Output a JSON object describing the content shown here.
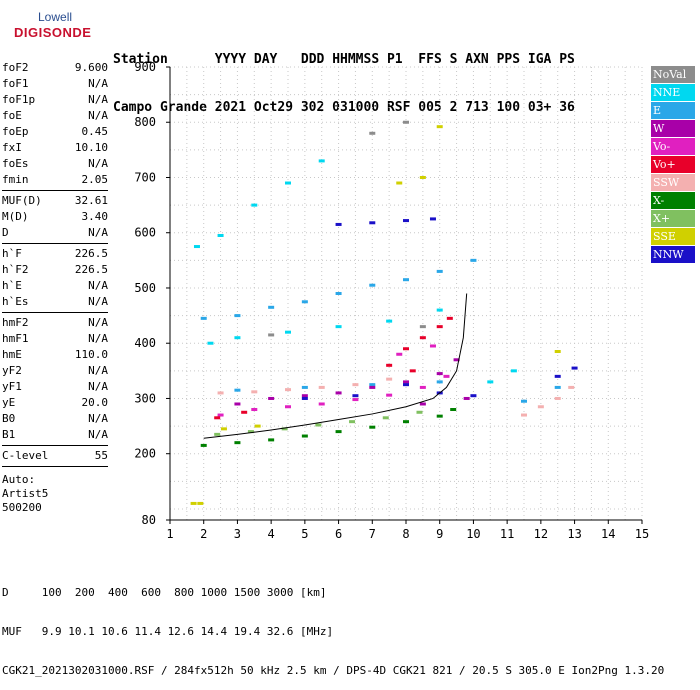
{
  "logo": {
    "brand": "Lowell",
    "name": "DIGISONDE"
  },
  "header": {
    "labels": [
      "Station",
      "YYYY",
      "DAY",
      "DDD",
      "HHMMSS",
      "P1",
      "FFS",
      "S",
      "AXN",
      "PPS",
      "IGA",
      "PS"
    ],
    "values": [
      "Campo Grande",
      "2021",
      "Oct29",
      "302",
      "031000",
      "RSF",
      "005",
      "2",
      "713",
      "100",
      "03+",
      "36"
    ]
  },
  "params": {
    "group1": [
      {
        "k": "foF2",
        "v": "9.600"
      },
      {
        "k": "foF1",
        "v": "N/A"
      },
      {
        "k": "foF1p",
        "v": "N/A"
      },
      {
        "k": "foE",
        "v": "N/A"
      },
      {
        "k": "foEp",
        "v": "0.45"
      },
      {
        "k": "fxI",
        "v": "10.10"
      },
      {
        "k": "foEs",
        "v": "N/A"
      },
      {
        "k": "fmin",
        "v": "2.05"
      }
    ],
    "group2": [
      {
        "k": "MUF(D)",
        "v": "32.61"
      },
      {
        "k": "M(D)",
        "v": "3.40"
      },
      {
        "k": "D",
        "v": "N/A"
      }
    ],
    "group3": [
      {
        "k": "h`F",
        "v": "226.5"
      },
      {
        "k": "h`F2",
        "v": "226.5"
      },
      {
        "k": "h`E",
        "v": "N/A"
      },
      {
        "k": "h`Es",
        "v": "N/A"
      }
    ],
    "group4": [
      {
        "k": "hmF2",
        "v": "N/A"
      },
      {
        "k": "hmF1",
        "v": "N/A"
      },
      {
        "k": "hmE",
        "v": "110.0"
      },
      {
        "k": "yF2",
        "v": "N/A"
      },
      {
        "k": "yF1",
        "v": "N/A"
      },
      {
        "k": "yE",
        "v": "20.0"
      },
      {
        "k": "B0",
        "v": "N/A"
      },
      {
        "k": "B1",
        "v": "N/A"
      }
    ],
    "group5": [
      {
        "k": "C-level",
        "v": "55"
      }
    ],
    "auto": [
      "Auto:",
      "Artist5",
      "500200"
    ]
  },
  "legend": [
    {
      "label": "NoVal",
      "color": "#8c8c8c"
    },
    {
      "label": "NNE",
      "color": "#00d8f0"
    },
    {
      "label": "E",
      "color": "#2aa7e8"
    },
    {
      "label": "W",
      "color": "#a800a8"
    },
    {
      "label": "Vo-",
      "color": "#e020c0"
    },
    {
      "label": "Vo+",
      "color": "#e8002a"
    },
    {
      "label": "SSW",
      "color": "#f4b0b0"
    },
    {
      "label": "X-",
      "color": "#008000"
    },
    {
      "label": "X+",
      "color": "#80c060"
    },
    {
      "label": "SSE",
      "color": "#d0d000"
    },
    {
      "label": "NNW",
      "color": "#1a10c8"
    }
  ],
  "footer": {
    "line1": "D     100  200  400  600  800 1000 1500 3000 [km]",
    "line2": "MUF   9.9 10.1 10.6 11.4 12.6 14.4 19.4 32.6 [MHz]",
    "line3": "CGK21_2021302031000.RSF / 284fx512h 50 kHz 2.5 km / DPS-4D CGK21 821 / 20.5 S 305.0 E Ion2Png 1.3.20"
  },
  "chart_data": {
    "type": "scatter",
    "title": "",
    "xlabel": "",
    "ylabel": "",
    "xlim": [
      1,
      15
    ],
    "ylim": [
      80,
      900
    ],
    "xticks": [
      1,
      2,
      3,
      4,
      5,
      6,
      7,
      8,
      9,
      10,
      11,
      12,
      13,
      14,
      15
    ],
    "yticks": [
      80,
      200,
      300,
      400,
      500,
      600,
      700,
      800,
      900
    ],
    "grid": true,
    "series": [
      {
        "name": "NNE",
        "color": "#00d8f0",
        "points": [
          [
            1.8,
            575
          ],
          [
            2.5,
            595
          ],
          [
            3.5,
            650
          ],
          [
            4.5,
            690
          ],
          [
            5.5,
            730
          ],
          [
            2.2,
            400
          ],
          [
            3.0,
            410
          ],
          [
            4.5,
            420
          ],
          [
            6.0,
            430
          ],
          [
            7.5,
            440
          ],
          [
            9.0,
            460
          ],
          [
            10.5,
            330
          ],
          [
            11.2,
            350
          ]
        ]
      },
      {
        "name": "E",
        "color": "#2aa7e8",
        "points": [
          [
            2.0,
            445
          ],
          [
            3.0,
            450
          ],
          [
            4.0,
            465
          ],
          [
            5.0,
            475
          ],
          [
            6.0,
            490
          ],
          [
            7.0,
            505
          ],
          [
            8.0,
            515
          ],
          [
            9.0,
            530
          ],
          [
            10.0,
            550
          ],
          [
            3.0,
            315
          ],
          [
            5.0,
            320
          ],
          [
            7.0,
            325
          ],
          [
            9.0,
            330
          ],
          [
            11.5,
            295
          ],
          [
            12.5,
            320
          ]
        ]
      },
      {
        "name": "W",
        "color": "#a800a8",
        "points": [
          [
            3.0,
            290
          ],
          [
            4.0,
            300
          ],
          [
            5.0,
            305
          ],
          [
            6.0,
            310
          ],
          [
            7.0,
            320
          ],
          [
            8.0,
            330
          ],
          [
            9.0,
            345
          ],
          [
            9.5,
            370
          ],
          [
            8.5,
            290
          ],
          [
            9.8,
            300
          ]
        ]
      },
      {
        "name": "Vo-",
        "color": "#e020c0",
        "points": [
          [
            2.5,
            270
          ],
          [
            3.5,
            280
          ],
          [
            4.5,
            285
          ],
          [
            5.5,
            290
          ],
          [
            6.5,
            298
          ],
          [
            7.5,
            306
          ],
          [
            8.5,
            320
          ],
          [
            9.2,
            340
          ],
          [
            7.8,
            380
          ],
          [
            8.8,
            395
          ]
        ]
      },
      {
        "name": "Vo+",
        "color": "#e8002a",
        "points": [
          [
            7.5,
            360
          ],
          [
            8.0,
            390
          ],
          [
            8.5,
            410
          ],
          [
            9.0,
            430
          ],
          [
            9.3,
            445
          ],
          [
            8.2,
            350
          ],
          [
            2.4,
            265
          ],
          [
            3.2,
            275
          ]
        ]
      },
      {
        "name": "SSW",
        "color": "#f4b0b0",
        "points": [
          [
            2.5,
            310
          ],
          [
            3.5,
            312
          ],
          [
            4.5,
            316
          ],
          [
            5.5,
            320
          ],
          [
            6.5,
            325
          ],
          [
            7.5,
            335
          ],
          [
            11.5,
            270
          ],
          [
            12.0,
            285
          ],
          [
            12.5,
            300
          ],
          [
            12.9,
            320
          ]
        ]
      },
      {
        "name": "X-",
        "color": "#008000",
        "points": [
          [
            2.0,
            215
          ],
          [
            3.0,
            220
          ],
          [
            4.0,
            225
          ],
          [
            5.0,
            232
          ],
          [
            6.0,
            240
          ],
          [
            7.0,
            248
          ],
          [
            8.0,
            258
          ],
          [
            9.0,
            268
          ],
          [
            9.4,
            280
          ]
        ]
      },
      {
        "name": "X+",
        "color": "#80c060",
        "points": [
          [
            2.4,
            235
          ],
          [
            3.4,
            240
          ],
          [
            4.4,
            245
          ],
          [
            5.4,
            252
          ],
          [
            6.4,
            258
          ],
          [
            7.4,
            265
          ],
          [
            8.4,
            275
          ]
        ]
      },
      {
        "name": "SSE",
        "color": "#d0d000",
        "points": [
          [
            1.7,
            110
          ],
          [
            1.9,
            110
          ],
          [
            7.8,
            690
          ],
          [
            8.5,
            700
          ],
          [
            2.6,
            245
          ],
          [
            3.6,
            250
          ],
          [
            9.0,
            792
          ],
          [
            12.5,
            385
          ]
        ]
      },
      {
        "name": "NNW",
        "color": "#1a10c8",
        "points": [
          [
            6.0,
            615
          ],
          [
            7.0,
            618
          ],
          [
            8.0,
            622
          ],
          [
            8.8,
            625
          ],
          [
            8.0,
            325
          ],
          [
            9.0,
            310
          ],
          [
            10.0,
            305
          ],
          [
            12.5,
            340
          ],
          [
            13.0,
            355
          ],
          [
            5.0,
            300
          ],
          [
            6.5,
            305
          ]
        ]
      },
      {
        "name": "NoVal",
        "color": "#8c8c8c",
        "points": [
          [
            7.0,
            780
          ],
          [
            8.0,
            800
          ],
          [
            4.0,
            415
          ],
          [
            8.5,
            430
          ]
        ]
      }
    ],
    "trace": {
      "name": "profile",
      "color": "#000000",
      "points": [
        [
          2.0,
          228
        ],
        [
          3.0,
          235
        ],
        [
          4.0,
          243
        ],
        [
          5.0,
          252
        ],
        [
          6.0,
          262
        ],
        [
          7.0,
          272
        ],
        [
          8.0,
          285
        ],
        [
          8.8,
          300
        ],
        [
          9.2,
          320
        ],
        [
          9.5,
          350
        ],
        [
          9.7,
          410
        ],
        [
          9.8,
          490
        ]
      ]
    }
  }
}
